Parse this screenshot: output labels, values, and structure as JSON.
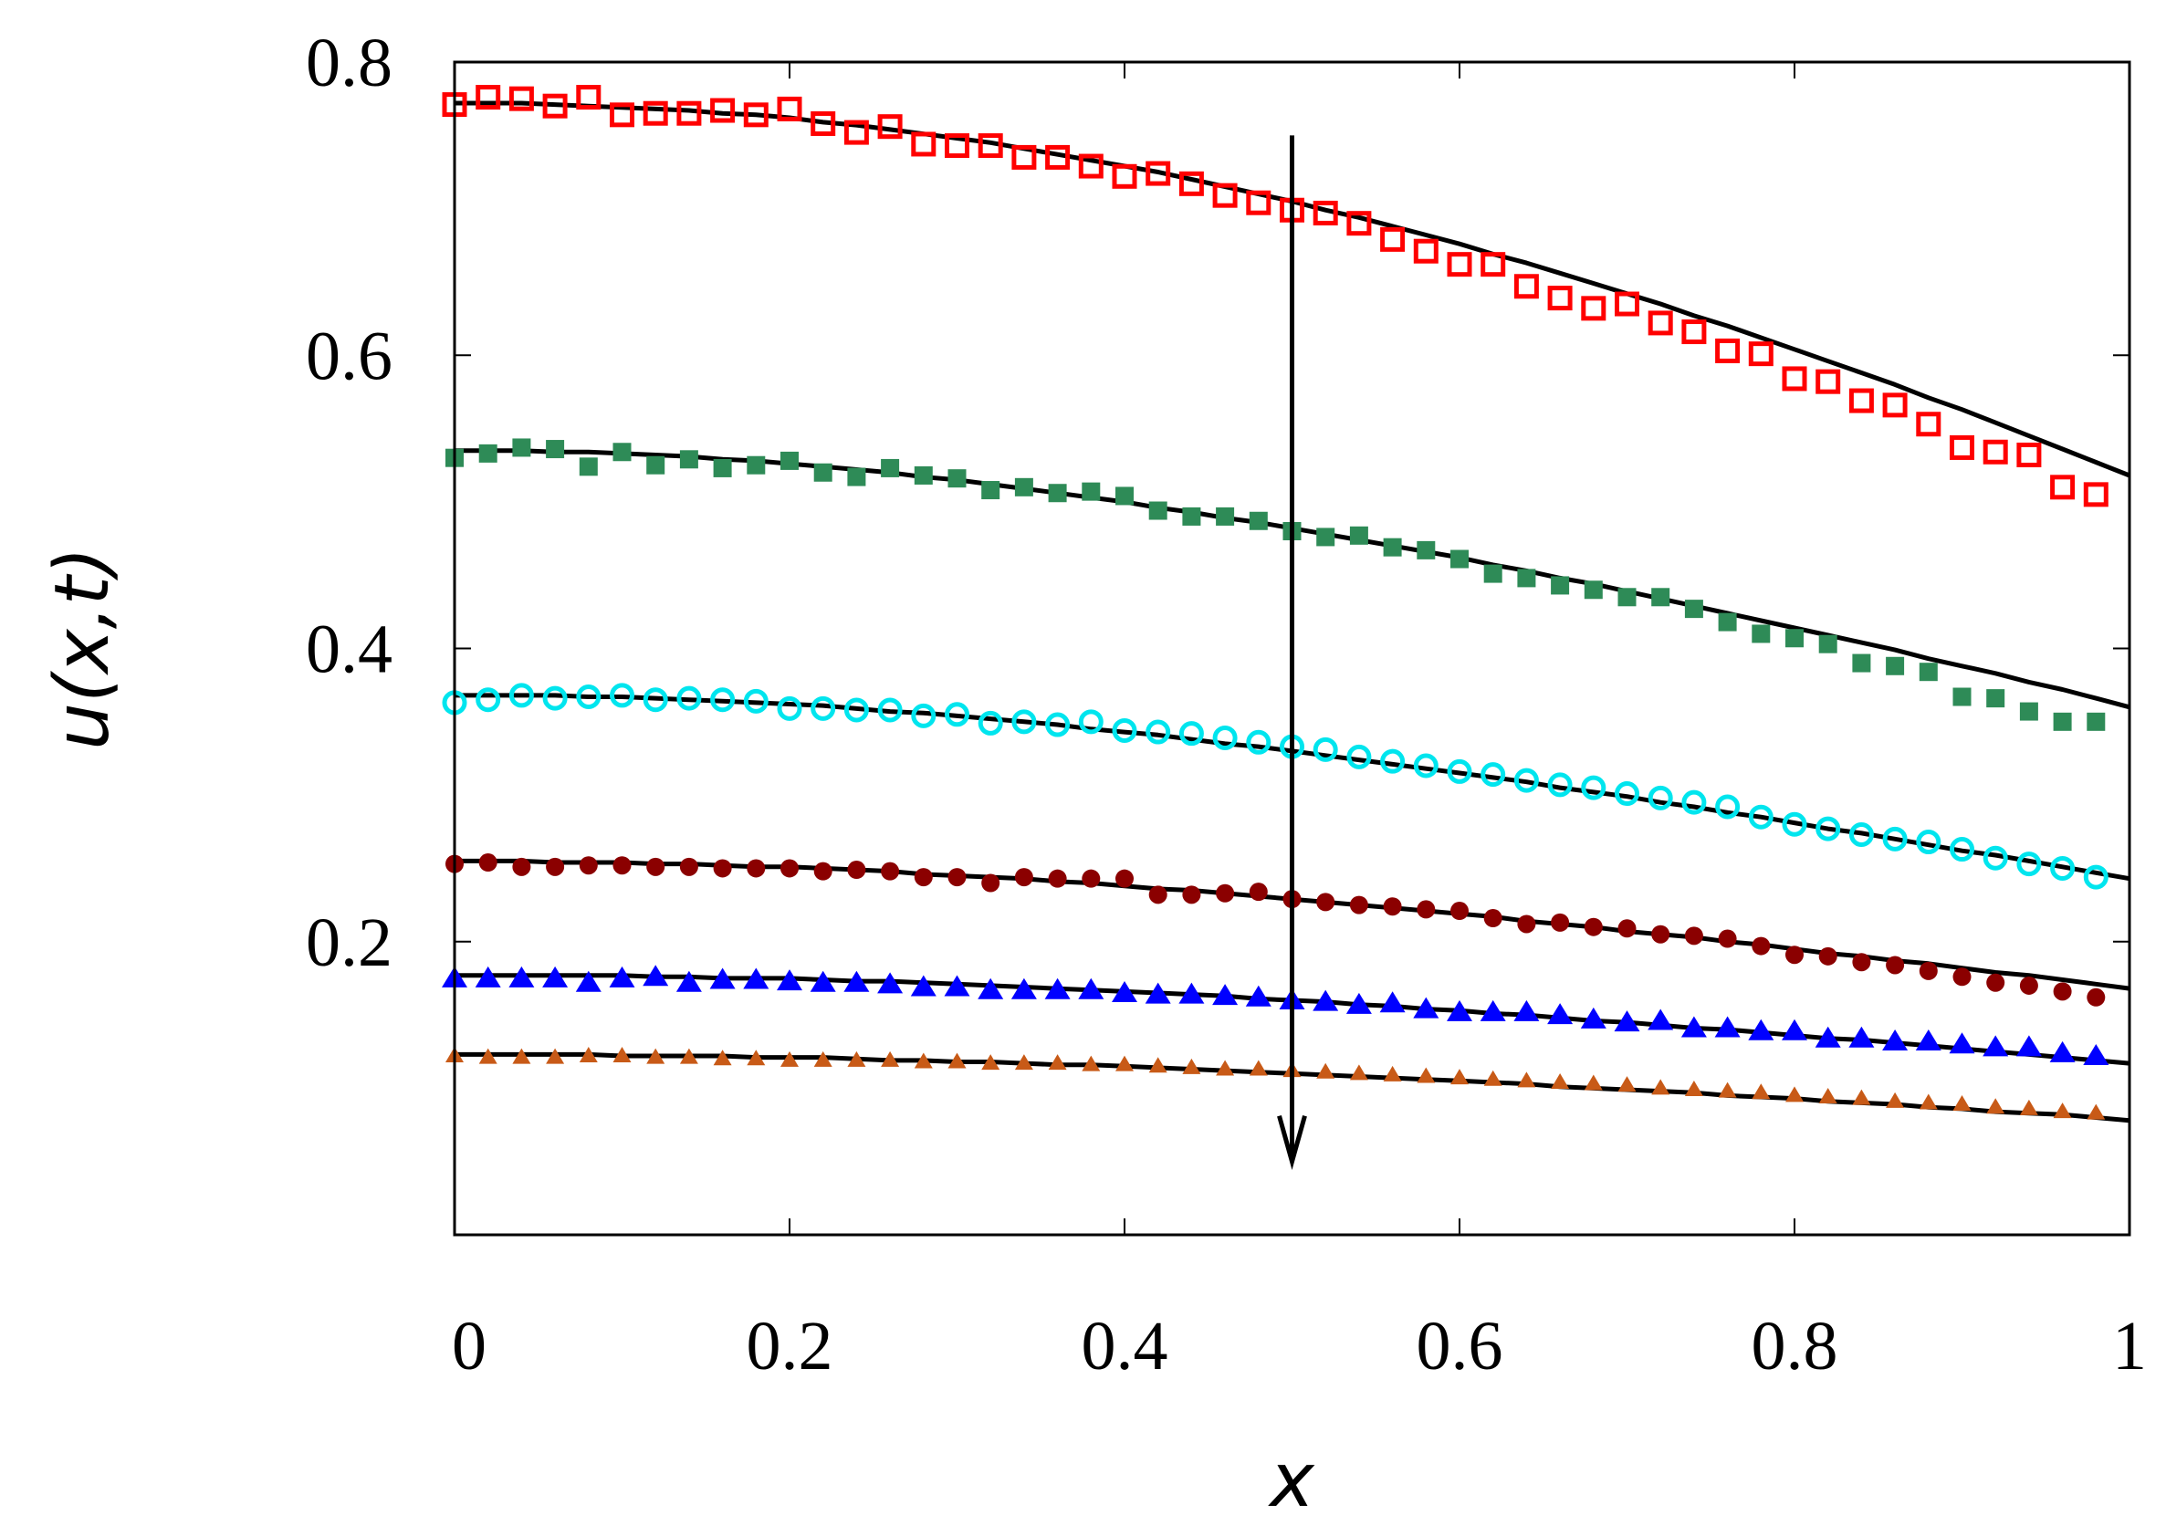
{
  "chart_data": {
    "type": "scatter",
    "title": "",
    "xlabel": "x",
    "ylabel": "u(x,t)",
    "xlim": [
      0,
      1
    ],
    "ylim": [
      0,
      0.8
    ],
    "x_ticks": [
      "0",
      "0.2",
      "0.4",
      "0.6",
      "0.8",
      "1"
    ],
    "y_ticks": [
      "0.2",
      "0.4",
      "0.6",
      "0.8"
    ],
    "x_tick_values": [
      0,
      0.2,
      0.4,
      0.6,
      0.8,
      1
    ],
    "y_tick_values": [
      0.2,
      0.4,
      0.6,
      0.8
    ],
    "grid": false,
    "legend": "none",
    "annotation": {
      "type": "arrow",
      "x": 0.5,
      "y_from": 0.75,
      "y_to": 0.05
    },
    "series": [
      {
        "marker": "open-square",
        "color": "#ff0000",
        "x": [
          0,
          0.02,
          0.04,
          0.06,
          0.08,
          0.1,
          0.12,
          0.14,
          0.16,
          0.18,
          0.2,
          0.22,
          0.24,
          0.26,
          0.28,
          0.3,
          0.32,
          0.34,
          0.36,
          0.38,
          0.4,
          0.42,
          0.44,
          0.46,
          0.48,
          0.5,
          0.52,
          0.54,
          0.56,
          0.58,
          0.6,
          0.62,
          0.64,
          0.66,
          0.68,
          0.7,
          0.72,
          0.74,
          0.76,
          0.78,
          0.8,
          0.82,
          0.84,
          0.86,
          0.88,
          0.9,
          0.92,
          0.94,
          0.96,
          0.98
        ],
        "y": [
          0.771,
          0.776,
          0.775,
          0.77,
          0.776,
          0.764,
          0.765,
          0.765,
          0.767,
          0.764,
          0.768,
          0.758,
          0.752,
          0.756,
          0.744,
          0.743,
          0.743,
          0.735,
          0.735,
          0.729,
          0.722,
          0.724,
          0.717,
          0.709,
          0.704,
          0.699,
          0.697,
          0.69,
          0.679,
          0.671,
          0.662,
          0.662,
          0.647,
          0.639,
          0.632,
          0.635,
          0.622,
          0.616,
          0.603,
          0.601,
          0.584,
          0.582,
          0.569,
          0.566,
          0.553,
          0.537,
          0.534,
          0.532,
          0.51,
          0.505
        ],
        "fit_y": [
          0.772,
          0.772,
          0.772,
          0.771,
          0.77,
          0.769,
          0.768,
          0.767,
          0.765,
          0.764,
          0.762,
          0.759,
          0.757,
          0.754,
          0.751,
          0.748,
          0.745,
          0.741,
          0.737,
          0.733,
          0.729,
          0.725,
          0.72,
          0.715,
          0.71,
          0.705,
          0.699,
          0.694,
          0.688,
          0.682,
          0.676,
          0.669,
          0.663,
          0.656,
          0.649,
          0.642,
          0.635,
          0.627,
          0.62,
          0.612,
          0.604,
          0.596,
          0.588,
          0.58,
          0.571,
          0.563,
          0.554,
          0.545,
          0.536,
          0.527
        ]
      },
      {
        "marker": "filled-square",
        "color": "#2e8b57",
        "x": [
          0,
          0.02,
          0.04,
          0.06,
          0.08,
          0.1,
          0.12,
          0.14,
          0.16,
          0.18,
          0.2,
          0.22,
          0.24,
          0.26,
          0.28,
          0.3,
          0.32,
          0.34,
          0.36,
          0.38,
          0.4,
          0.42,
          0.44,
          0.46,
          0.48,
          0.5,
          0.52,
          0.54,
          0.56,
          0.58,
          0.6,
          0.62,
          0.64,
          0.66,
          0.68,
          0.7,
          0.72,
          0.74,
          0.76,
          0.78,
          0.8,
          0.82,
          0.84,
          0.86,
          0.88,
          0.9,
          0.92,
          0.94,
          0.96,
          0.98
        ],
        "y": [
          0.53,
          0.533,
          0.537,
          0.536,
          0.524,
          0.534,
          0.525,
          0.529,
          0.523,
          0.525,
          0.528,
          0.52,
          0.517,
          0.523,
          0.518,
          0.516,
          0.508,
          0.51,
          0.506,
          0.507,
          0.504,
          0.494,
          0.49,
          0.49,
          0.487,
          0.48,
          0.476,
          0.477,
          0.469,
          0.467,
          0.461,
          0.451,
          0.448,
          0.443,
          0.44,
          0.435,
          0.435,
          0.427,
          0.418,
          0.41,
          0.407,
          0.403,
          0.39,
          0.388,
          0.384,
          0.367,
          0.366,
          0.357,
          0.35,
          0.35
        ],
        "fit_y": [
          0.535,
          0.535,
          0.535,
          0.534,
          0.534,
          0.533,
          0.532,
          0.531,
          0.529,
          0.528,
          0.526,
          0.524,
          0.522,
          0.52,
          0.517,
          0.515,
          0.512,
          0.509,
          0.506,
          0.503,
          0.5,
          0.496,
          0.493,
          0.489,
          0.486,
          0.482,
          0.478,
          0.474,
          0.47,
          0.466,
          0.462,
          0.457,
          0.453,
          0.448,
          0.444,
          0.439,
          0.434,
          0.429,
          0.424,
          0.419,
          0.414,
          0.409,
          0.404,
          0.399,
          0.393,
          0.388,
          0.383,
          0.377,
          0.372,
          0.366
        ]
      },
      {
        "marker": "open-circle",
        "color": "#00e5ee",
        "x": [
          0,
          0.02,
          0.04,
          0.06,
          0.08,
          0.1,
          0.12,
          0.14,
          0.16,
          0.18,
          0.2,
          0.22,
          0.24,
          0.26,
          0.28,
          0.3,
          0.32,
          0.34,
          0.36,
          0.38,
          0.4,
          0.42,
          0.44,
          0.46,
          0.48,
          0.5,
          0.52,
          0.54,
          0.56,
          0.58,
          0.6,
          0.62,
          0.64,
          0.66,
          0.68,
          0.7,
          0.72,
          0.74,
          0.76,
          0.78,
          0.8,
          0.82,
          0.84,
          0.86,
          0.88,
          0.9,
          0.92,
          0.94,
          0.96,
          0.98
        ],
        "y": [
          0.363,
          0.365,
          0.368,
          0.366,
          0.367,
          0.368,
          0.365,
          0.366,
          0.365,
          0.364,
          0.359,
          0.359,
          0.358,
          0.358,
          0.354,
          0.355,
          0.349,
          0.35,
          0.348,
          0.35,
          0.344,
          0.343,
          0.342,
          0.339,
          0.336,
          0.333,
          0.331,
          0.326,
          0.323,
          0.32,
          0.316,
          0.314,
          0.31,
          0.307,
          0.305,
          0.301,
          0.298,
          0.295,
          0.292,
          0.285,
          0.28,
          0.277,
          0.273,
          0.27,
          0.268,
          0.263,
          0.257,
          0.253,
          0.25,
          0.244
        ],
        "fit_y": [
          0.368,
          0.368,
          0.368,
          0.368,
          0.367,
          0.367,
          0.366,
          0.365,
          0.364,
          0.363,
          0.362,
          0.361,
          0.359,
          0.357,
          0.356,
          0.354,
          0.352,
          0.35,
          0.348,
          0.345,
          0.343,
          0.341,
          0.338,
          0.335,
          0.333,
          0.33,
          0.327,
          0.324,
          0.321,
          0.318,
          0.315,
          0.312,
          0.309,
          0.305,
          0.302,
          0.299,
          0.295,
          0.292,
          0.288,
          0.285,
          0.281,
          0.277,
          0.274,
          0.27,
          0.266,
          0.262,
          0.259,
          0.255,
          0.251,
          0.247
        ]
      },
      {
        "marker": "filled-circle",
        "color": "#8b0000",
        "x": [
          0,
          0.02,
          0.04,
          0.06,
          0.08,
          0.1,
          0.12,
          0.14,
          0.16,
          0.18,
          0.2,
          0.22,
          0.24,
          0.26,
          0.28,
          0.3,
          0.32,
          0.34,
          0.36,
          0.38,
          0.4,
          0.42,
          0.44,
          0.46,
          0.48,
          0.5,
          0.52,
          0.54,
          0.56,
          0.58,
          0.6,
          0.62,
          0.64,
          0.66,
          0.68,
          0.7,
          0.72,
          0.74,
          0.76,
          0.78,
          0.8,
          0.82,
          0.84,
          0.86,
          0.88,
          0.9,
          0.92,
          0.94,
          0.96,
          0.98
        ],
        "y": [
          0.253,
          0.254,
          0.251,
          0.251,
          0.252,
          0.252,
          0.251,
          0.251,
          0.25,
          0.25,
          0.25,
          0.248,
          0.249,
          0.248,
          0.244,
          0.244,
          0.24,
          0.244,
          0.243,
          0.243,
          0.243,
          0.232,
          0.232,
          0.233,
          0.234,
          0.229,
          0.227,
          0.225,
          0.224,
          0.222,
          0.221,
          0.216,
          0.212,
          0.213,
          0.21,
          0.209,
          0.205,
          0.204,
          0.202,
          0.197,
          0.191,
          0.19,
          0.186,
          0.184,
          0.18,
          0.176,
          0.172,
          0.17,
          0.166,
          0.162
        ],
        "fit_y": [
          0.255,
          0.255,
          0.255,
          0.254,
          0.254,
          0.254,
          0.253,
          0.253,
          0.252,
          0.251,
          0.251,
          0.25,
          0.249,
          0.248,
          0.246,
          0.245,
          0.244,
          0.243,
          0.241,
          0.24,
          0.238,
          0.236,
          0.235,
          0.233,
          0.231,
          0.229,
          0.227,
          0.225,
          0.223,
          0.221,
          0.219,
          0.217,
          0.214,
          0.212,
          0.21,
          0.207,
          0.205,
          0.203,
          0.2,
          0.198,
          0.195,
          0.192,
          0.19,
          0.187,
          0.185,
          0.182,
          0.179,
          0.177,
          0.174,
          0.171
        ]
      },
      {
        "marker": "filled-triangle",
        "color": "#0000ff",
        "x": [
          0,
          0.02,
          0.04,
          0.06,
          0.08,
          0.1,
          0.12,
          0.14,
          0.16,
          0.18,
          0.2,
          0.22,
          0.24,
          0.26,
          0.28,
          0.3,
          0.32,
          0.34,
          0.36,
          0.38,
          0.4,
          0.42,
          0.44,
          0.46,
          0.48,
          0.5,
          0.52,
          0.54,
          0.56,
          0.58,
          0.6,
          0.62,
          0.64,
          0.66,
          0.68,
          0.7,
          0.72,
          0.74,
          0.76,
          0.78,
          0.8,
          0.82,
          0.84,
          0.86,
          0.88,
          0.9,
          0.92,
          0.94,
          0.96,
          0.98
        ],
        "y": [
          0.175,
          0.175,
          0.175,
          0.175,
          0.172,
          0.175,
          0.176,
          0.172,
          0.174,
          0.174,
          0.173,
          0.172,
          0.172,
          0.171,
          0.169,
          0.169,
          0.167,
          0.167,
          0.167,
          0.167,
          0.165,
          0.164,
          0.164,
          0.163,
          0.162,
          0.16,
          0.159,
          0.157,
          0.158,
          0.154,
          0.152,
          0.152,
          0.152,
          0.15,
          0.147,
          0.145,
          0.146,
          0.141,
          0.141,
          0.139,
          0.139,
          0.134,
          0.134,
          0.132,
          0.132,
          0.13,
          0.128,
          0.128,
          0.124,
          0.122
        ],
        "fit_y": [
          0.177,
          0.177,
          0.177,
          0.177,
          0.177,
          0.177,
          0.176,
          0.176,
          0.175,
          0.175,
          0.175,
          0.174,
          0.173,
          0.173,
          0.172,
          0.171,
          0.17,
          0.169,
          0.168,
          0.167,
          0.166,
          0.165,
          0.164,
          0.163,
          0.161,
          0.16,
          0.159,
          0.157,
          0.156,
          0.154,
          0.153,
          0.151,
          0.15,
          0.148,
          0.146,
          0.145,
          0.143,
          0.141,
          0.14,
          0.138,
          0.136,
          0.134,
          0.133,
          0.131,
          0.129,
          0.127,
          0.125,
          0.123,
          0.121,
          0.119
        ]
      },
      {
        "marker": "filled-triangle-small",
        "color": "#c85a17",
        "x": [
          0,
          0.02,
          0.04,
          0.06,
          0.08,
          0.1,
          0.12,
          0.14,
          0.16,
          0.18,
          0.2,
          0.22,
          0.24,
          0.26,
          0.28,
          0.3,
          0.32,
          0.34,
          0.36,
          0.38,
          0.4,
          0.42,
          0.44,
          0.46,
          0.48,
          0.5,
          0.52,
          0.54,
          0.56,
          0.58,
          0.6,
          0.62,
          0.64,
          0.66,
          0.68,
          0.7,
          0.72,
          0.74,
          0.76,
          0.78,
          0.8,
          0.82,
          0.84,
          0.86,
          0.88,
          0.9,
          0.92,
          0.94,
          0.96,
          0.98
        ],
        "y": [
          0.122,
          0.121,
          0.121,
          0.121,
          0.122,
          0.122,
          0.121,
          0.121,
          0.12,
          0.12,
          0.119,
          0.119,
          0.119,
          0.119,
          0.118,
          0.118,
          0.117,
          0.117,
          0.117,
          0.116,
          0.116,
          0.115,
          0.114,
          0.113,
          0.113,
          0.112,
          0.111,
          0.11,
          0.109,
          0.108,
          0.107,
          0.106,
          0.105,
          0.104,
          0.103,
          0.102,
          0.1,
          0.099,
          0.098,
          0.097,
          0.095,
          0.094,
          0.093,
          0.091,
          0.09,
          0.089,
          0.087,
          0.086,
          0.084,
          0.083
        ],
        "fit_y": [
          0.123,
          0.123,
          0.123,
          0.123,
          0.123,
          0.122,
          0.122,
          0.122,
          0.122,
          0.121,
          0.121,
          0.121,
          0.12,
          0.119,
          0.119,
          0.118,
          0.118,
          0.117,
          0.116,
          0.116,
          0.115,
          0.114,
          0.113,
          0.112,
          0.111,
          0.11,
          0.109,
          0.108,
          0.107,
          0.106,
          0.105,
          0.104,
          0.103,
          0.101,
          0.1,
          0.099,
          0.098,
          0.097,
          0.095,
          0.094,
          0.093,
          0.091,
          0.09,
          0.089,
          0.087,
          0.086,
          0.084,
          0.083,
          0.082,
          0.08
        ]
      }
    ]
  }
}
